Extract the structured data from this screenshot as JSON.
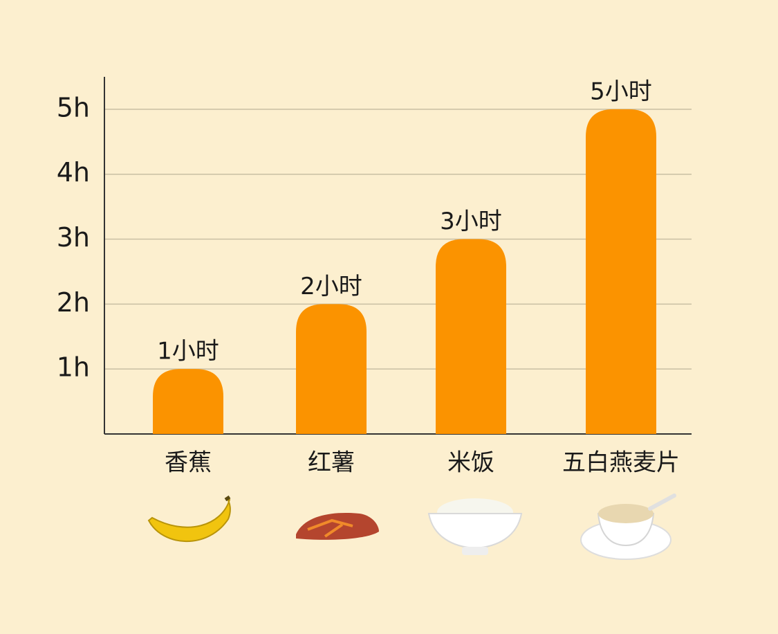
{
  "chart_data": {
    "type": "bar",
    "categories": [
      "香蕉",
      "红薯",
      "米饭",
      "五白燕麦片"
    ],
    "values": [
      1,
      2,
      3,
      5
    ],
    "value_labels": [
      "1小时",
      "2小时",
      "3小时",
      "5小时"
    ],
    "color": "#fb9300",
    "ylim": [
      0,
      5.5
    ],
    "yticks": [
      {
        "value": 1,
        "label": "1h"
      },
      {
        "value": 2,
        "label": "2h"
      },
      {
        "value": 3,
        "label": "3h"
      },
      {
        "value": 4,
        "label": "4h"
      },
      {
        "value": 5,
        "label": "5h"
      }
    ],
    "grid": true
  }
}
